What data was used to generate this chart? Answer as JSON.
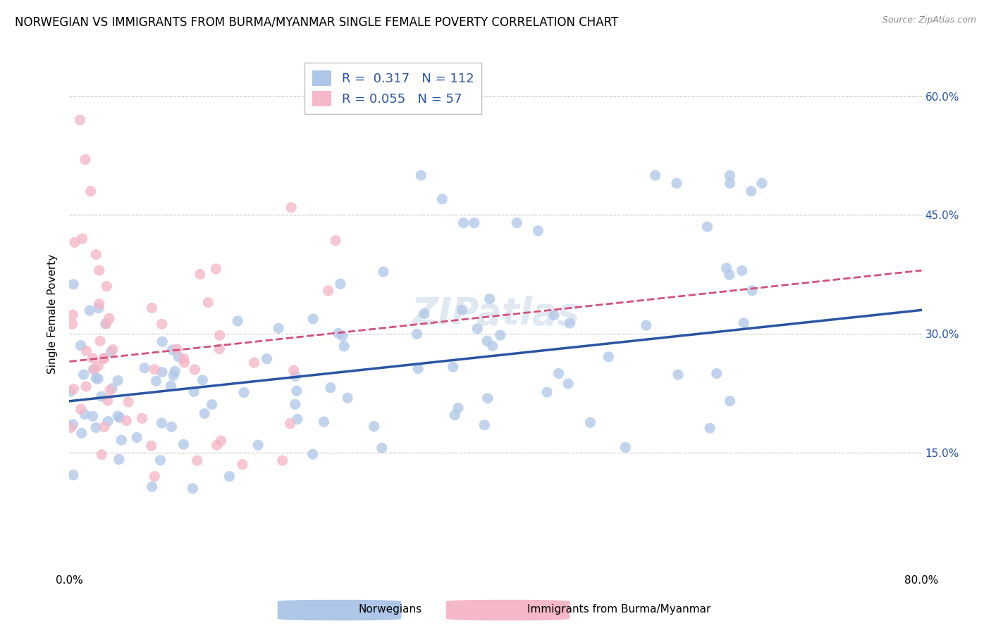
{
  "title": "NORWEGIAN VS IMMIGRANTS FROM BURMA/MYANMAR SINGLE FEMALE POVERTY CORRELATION CHART",
  "source": "Source: ZipAtlas.com",
  "ylabel": "Single Female Poverty",
  "legend_labels": [
    "Norwegians",
    "Immigrants from Burma/Myanmar"
  ],
  "R_norwegian": 0.317,
  "N_norwegian": 112,
  "R_burma": 0.055,
  "N_burma": 57,
  "color_norwegian": "#aec6e8",
  "color_burma": "#f4b8c8",
  "line_color_norwegian": "#2955a3",
  "line_color_burma": "#d4507a",
  "watermark": "ZIPatlas",
  "xmin": 0,
  "xmax": 80,
  "ymin": 0,
  "ymax": 65,
  "yticks": [
    15,
    30,
    45,
    60
  ],
  "ytick_labels": [
    "15.0%",
    "30.0%",
    "45.0%",
    "60.0%"
  ],
  "nor_trend_start": 21.5,
  "nor_trend_end": 33.0,
  "bur_trend_start": 26.5,
  "bur_trend_end": 38.0,
  "bur_x_max_trend": 80
}
